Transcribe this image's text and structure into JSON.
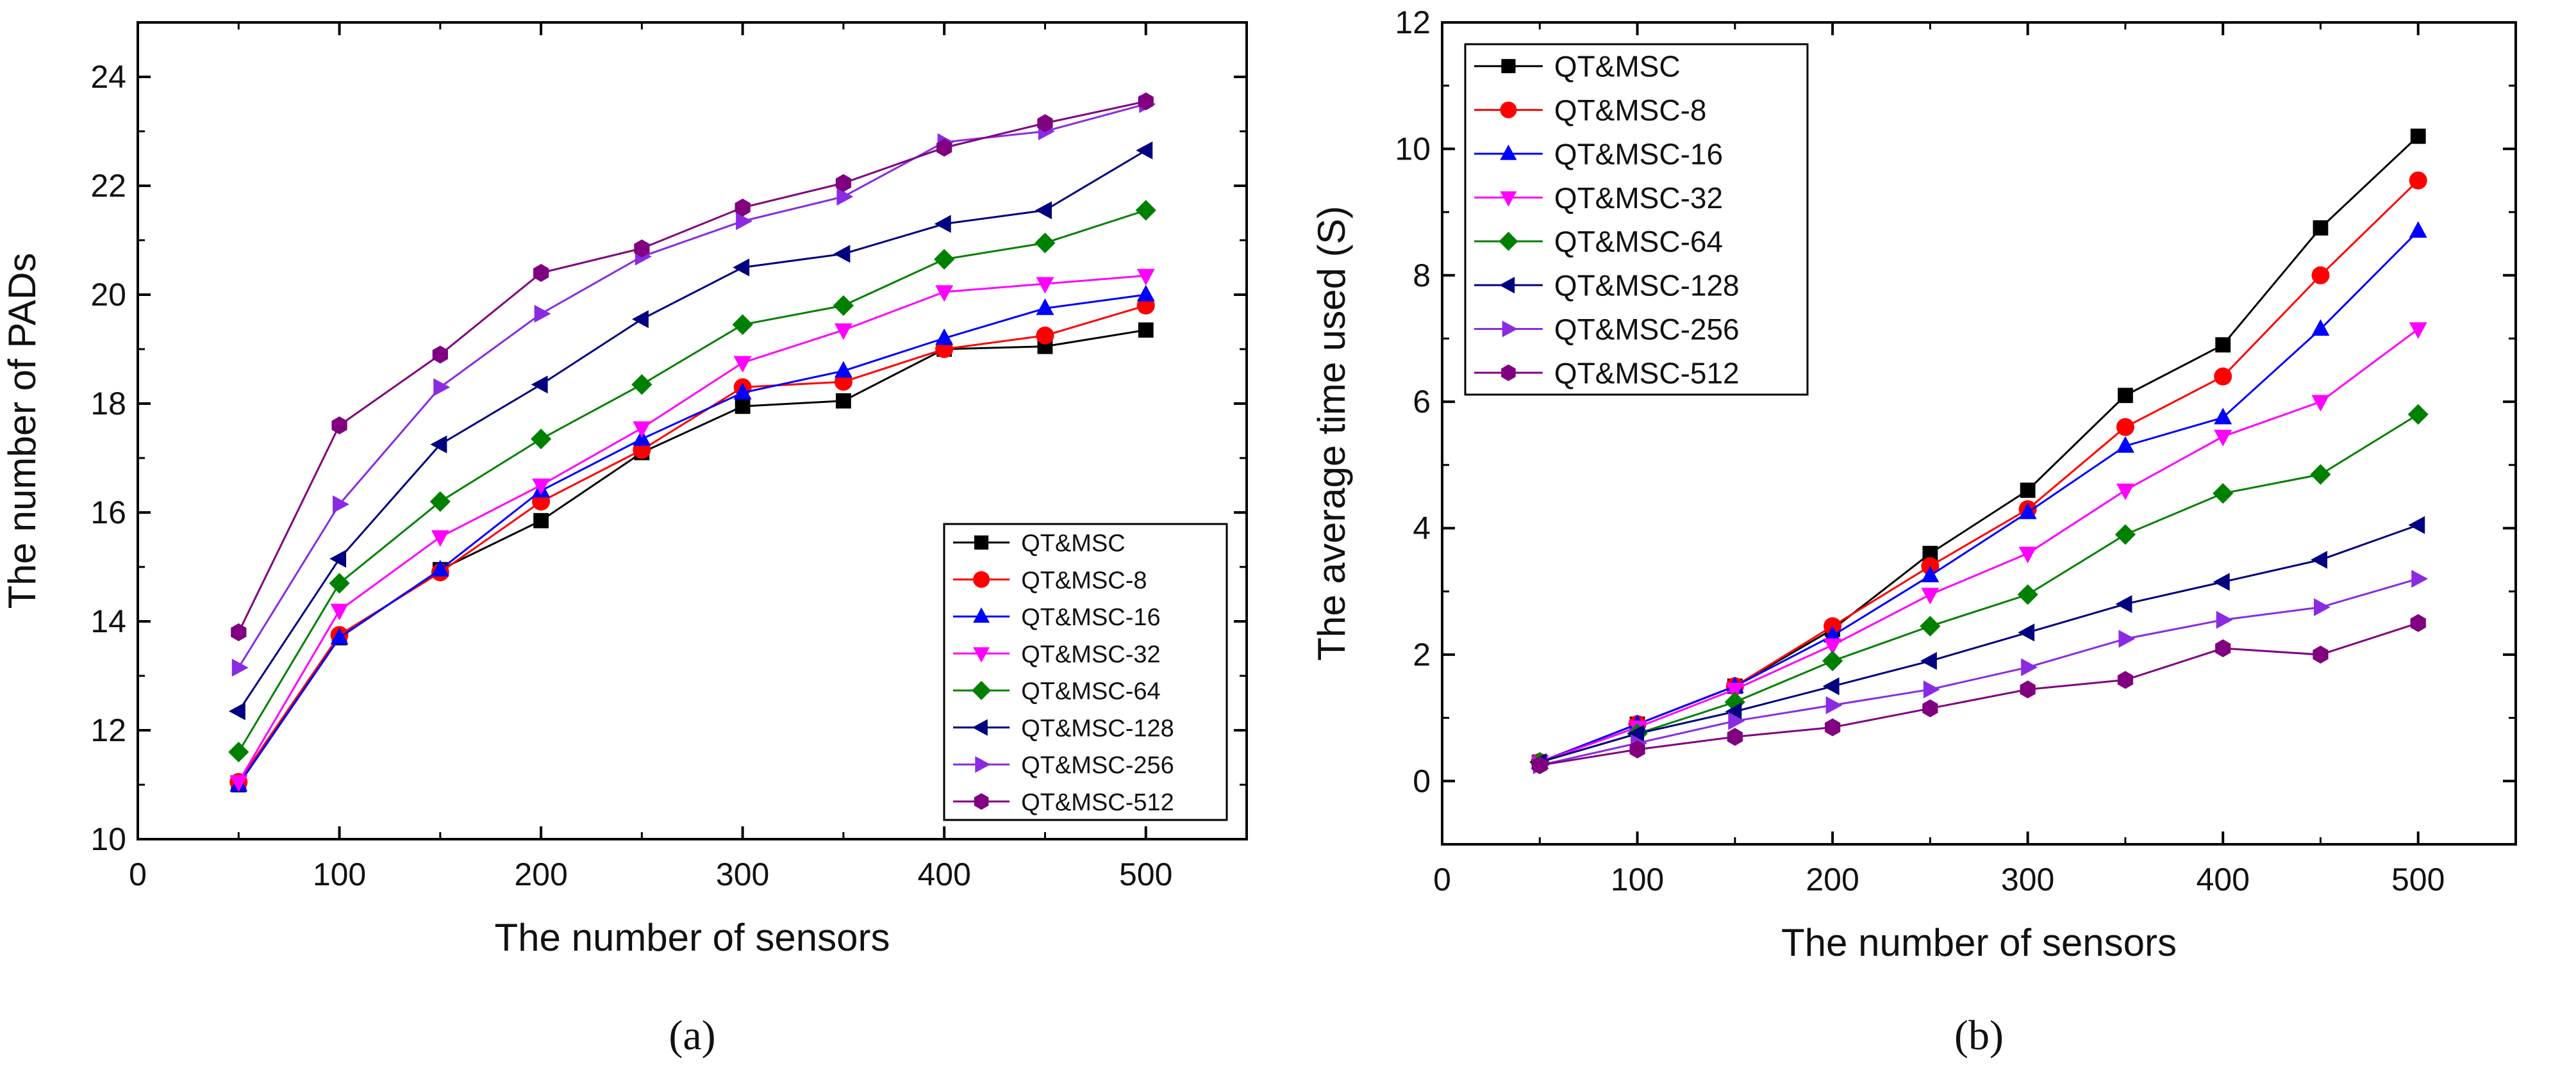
{
  "series_names": [
    "QT&MSC",
    "QT&MSC-8",
    "QT&MSC-16",
    "QT&MSC-32",
    "QT&MSC-64",
    "QT&MSC-128",
    "QT&MSC-256",
    "QT&MSC-512"
  ],
  "series_styles": [
    {
      "color": "#000000",
      "marker": "square"
    },
    {
      "color": "#ff0000",
      "marker": "circle"
    },
    {
      "color": "#0000ff",
      "marker": "triangle-up"
    },
    {
      "color": "#ff00ff",
      "marker": "triangle-down"
    },
    {
      "color": "#008000",
      "marker": "diamond"
    },
    {
      "color": "#000080",
      "marker": "triangle-left"
    },
    {
      "color": "#8a2be2",
      "marker": "triangle-right"
    },
    {
      "color": "#800080",
      "marker": "hexagon"
    }
  ],
  "chart_data": [
    {
      "type": "line",
      "panel_label": "(a)",
      "title": "",
      "xlabel": "The number of sensors",
      "ylabel": "The number of PADs",
      "xlim": [
        0,
        550
      ],
      "ylim": [
        10,
        25
      ],
      "xticks": [
        0,
        100,
        200,
        300,
        400,
        500
      ],
      "yticks": [
        10,
        12,
        14,
        16,
        18,
        20,
        22,
        24
      ],
      "x": [
        50,
        100,
        150,
        200,
        250,
        300,
        350,
        400,
        450,
        500
      ],
      "legend": {
        "position": "bottom-right"
      },
      "series": [
        {
          "name": "QT&MSC",
          "values": [
            11.0,
            13.7,
            14.95,
            15.85,
            17.1,
            17.95,
            18.05,
            19.0,
            19.05,
            19.35
          ]
        },
        {
          "name": "QT&MSC-8",
          "values": [
            11.05,
            13.75,
            14.9,
            16.2,
            17.15,
            18.3,
            18.4,
            19.0,
            19.25,
            19.8
          ]
        },
        {
          "name": "QT&MSC-16",
          "values": [
            11.0,
            13.7,
            14.95,
            16.4,
            17.35,
            18.2,
            18.6,
            19.2,
            19.75,
            20.0
          ]
        },
        {
          "name": "QT&MSC-32",
          "values": [
            11.05,
            14.2,
            15.55,
            16.5,
            17.55,
            18.75,
            19.35,
            20.05,
            20.2,
            20.35
          ]
        },
        {
          "name": "QT&MSC-64",
          "values": [
            11.6,
            14.7,
            16.2,
            17.35,
            18.35,
            19.45,
            19.8,
            20.65,
            20.95,
            21.55
          ]
        },
        {
          "name": "QT&MSC-128",
          "values": [
            12.35,
            15.15,
            17.25,
            18.35,
            19.55,
            20.5,
            20.75,
            21.3,
            21.55,
            22.65
          ]
        },
        {
          "name": "QT&MSC-256",
          "values": [
            13.15,
            16.15,
            18.3,
            19.65,
            20.7,
            21.35,
            21.8,
            22.8,
            23.0,
            23.5
          ]
        },
        {
          "name": "QT&MSC-512",
          "values": [
            13.8,
            17.6,
            18.9,
            20.4,
            20.85,
            21.6,
            22.05,
            22.7,
            23.15,
            23.55
          ]
        }
      ]
    },
    {
      "type": "line",
      "panel_label": "(b)",
      "title": "",
      "xlabel": "The number of sensors",
      "ylabel": "The average time used (S)",
      "xlim": [
        0,
        550
      ],
      "ylim": [
        -1,
        12
      ],
      "xticks": [
        0,
        100,
        200,
        300,
        400,
        500
      ],
      "yticks": [
        0,
        2,
        4,
        6,
        8,
        10,
        12
      ],
      "x": [
        50,
        100,
        150,
        200,
        250,
        300,
        350,
        400,
        450,
        500
      ],
      "legend": {
        "position": "top-left"
      },
      "series": [
        {
          "name": "QT&MSC",
          "values": [
            0.3,
            0.9,
            1.5,
            2.4,
            3.6,
            4.6,
            6.1,
            6.9,
            8.75,
            10.2
          ]
        },
        {
          "name": "QT&MSC-8",
          "values": [
            0.3,
            0.9,
            1.5,
            2.45,
            3.4,
            4.3,
            5.6,
            6.4,
            8.0,
            9.5
          ]
        },
        {
          "name": "QT&MSC-16",
          "values": [
            0.3,
            0.9,
            1.5,
            2.3,
            3.25,
            4.25,
            5.3,
            5.75,
            7.15,
            8.7
          ]
        },
        {
          "name": "QT&MSC-32",
          "values": [
            0.3,
            0.85,
            1.45,
            2.15,
            2.95,
            3.6,
            4.6,
            5.45,
            6.0,
            7.15
          ]
        },
        {
          "name": "QT&MSC-64",
          "values": [
            0.3,
            0.75,
            1.25,
            1.9,
            2.45,
            2.95,
            3.9,
            4.55,
            4.85,
            5.8
          ]
        },
        {
          "name": "QT&MSC-128",
          "values": [
            0.3,
            0.75,
            1.1,
            1.5,
            1.9,
            2.35,
            2.8,
            3.15,
            3.5,
            4.05
          ]
        },
        {
          "name": "QT&MSC-256",
          "values": [
            0.25,
            0.6,
            0.95,
            1.2,
            1.45,
            1.8,
            2.25,
            2.55,
            2.75,
            3.2
          ]
        },
        {
          "name": "QT&MSC-512",
          "values": [
            0.25,
            0.5,
            0.7,
            0.85,
            1.15,
            1.45,
            1.6,
            2.1,
            2.0,
            2.5
          ]
        }
      ]
    }
  ]
}
